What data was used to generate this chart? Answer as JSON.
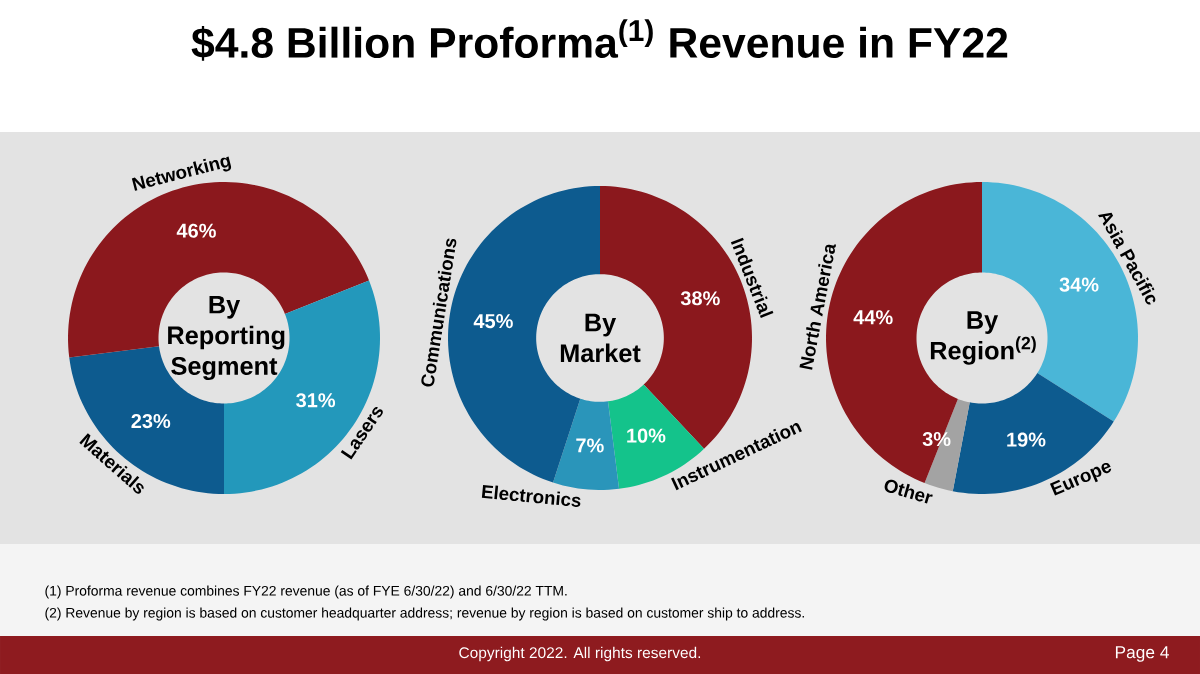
{
  "chart_data": [
    {
      "type": "donut",
      "title": "By Reporting Segment",
      "categories": [
        "Materials",
        "Networking",
        "Lasers"
      ],
      "values": [
        23,
        46,
        31
      ],
      "colors": [
        "#0d5b8f",
        "#8b181d",
        "#2398bb"
      ],
      "value_labels": [
        "23%",
        "46%",
        "31%"
      ],
      "annotations": [
        "$4.8 Billion Proforma$^{(1)}$ Revenue in FY22",
        "(1)   Proforma revenue combines FY22 revenue (as of FYE 6/30/22) and 6/30/22 TTM.",
        "(2)   Revenue by region is based on customer headquarter address; revenue by region is based on customer ship to address.",
        "Copyright 2022. All rights reserved.",
        "Page 4"
      ]
    },
    {
      "type": "donut",
      "title": "By Market",
      "categories": [
        "Industrial",
        "Instrumentation",
        "Electronics",
        "Communications"
      ],
      "values": [
        38,
        10,
        7,
        45
      ],
      "colors": [
        "#8b181d",
        "#14c38b",
        "#2a95ba",
        "#0d5b8f"
      ],
      "value_labels": [
        "38%",
        "10%",
        "7%",
        "45%"
      ]
    },
    {
      "type": "donut",
      "title": "By Region$^{(2)}$",
      "categories": [
        "Asia Pacific",
        "Europe",
        "Other",
        "North America"
      ],
      "values": [
        34,
        19,
        3,
        44
      ],
      "colors": [
        "#4ab6d7",
        "#0d5b8f",
        "#a3a3a3",
        "#8b181d"
      ],
      "value_labels": [
        "34%",
        "19%",
        "3%",
        "44%"
      ]
    }
  ]
}
